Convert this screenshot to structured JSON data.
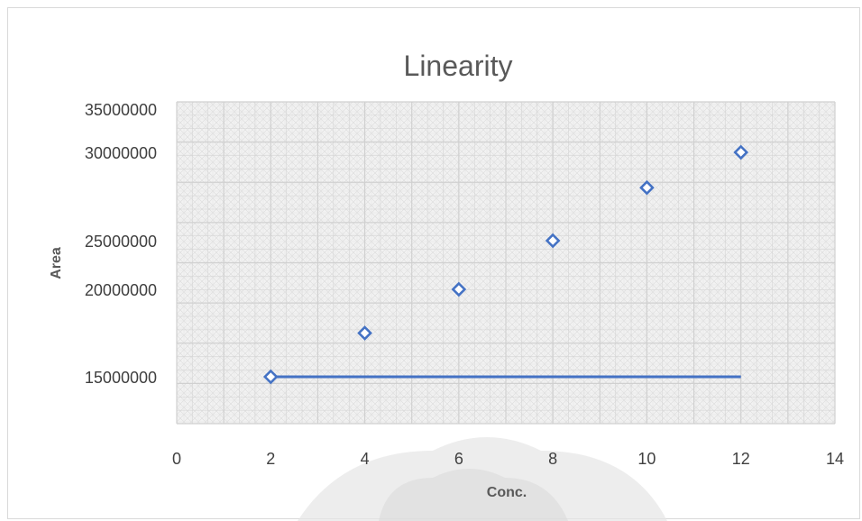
{
  "chart_data": {
    "type": "scatter",
    "title": "Linearity",
    "xlabel": "Conc.",
    "ylabel": "Area",
    "xlim": [
      0,
      14
    ],
    "x_ticks": [
      "0",
      "2",
      "4",
      "6",
      "8",
      "10",
      "12",
      "14"
    ],
    "y_ticks": [
      {
        "value": 15000000,
        "label": "15000000"
      },
      {
        "value": 20000000,
        "label": "20000000"
      },
      {
        "value": 25000000,
        "label": "25000000"
      },
      {
        "value": 30000000,
        "label": "30000000"
      },
      {
        "value": 35000000,
        "label": "35000000"
      }
    ],
    "points": [
      {
        "x": 2,
        "y": 15000000
      },
      {
        "x": 4,
        "y": 17500000
      },
      {
        "x": 6,
        "y": 20000000
      },
      {
        "x": 8,
        "y": 25000000
      },
      {
        "x": 10,
        "y": 28000000
      },
      {
        "x": 12,
        "y": 30000000
      }
    ],
    "line": [
      {
        "x": 2,
        "y": 15000000
      },
      {
        "x": 12,
        "y": 15000000
      }
    ],
    "marker": "open-diamond",
    "series_color": "#4472c4",
    "grid": true
  }
}
